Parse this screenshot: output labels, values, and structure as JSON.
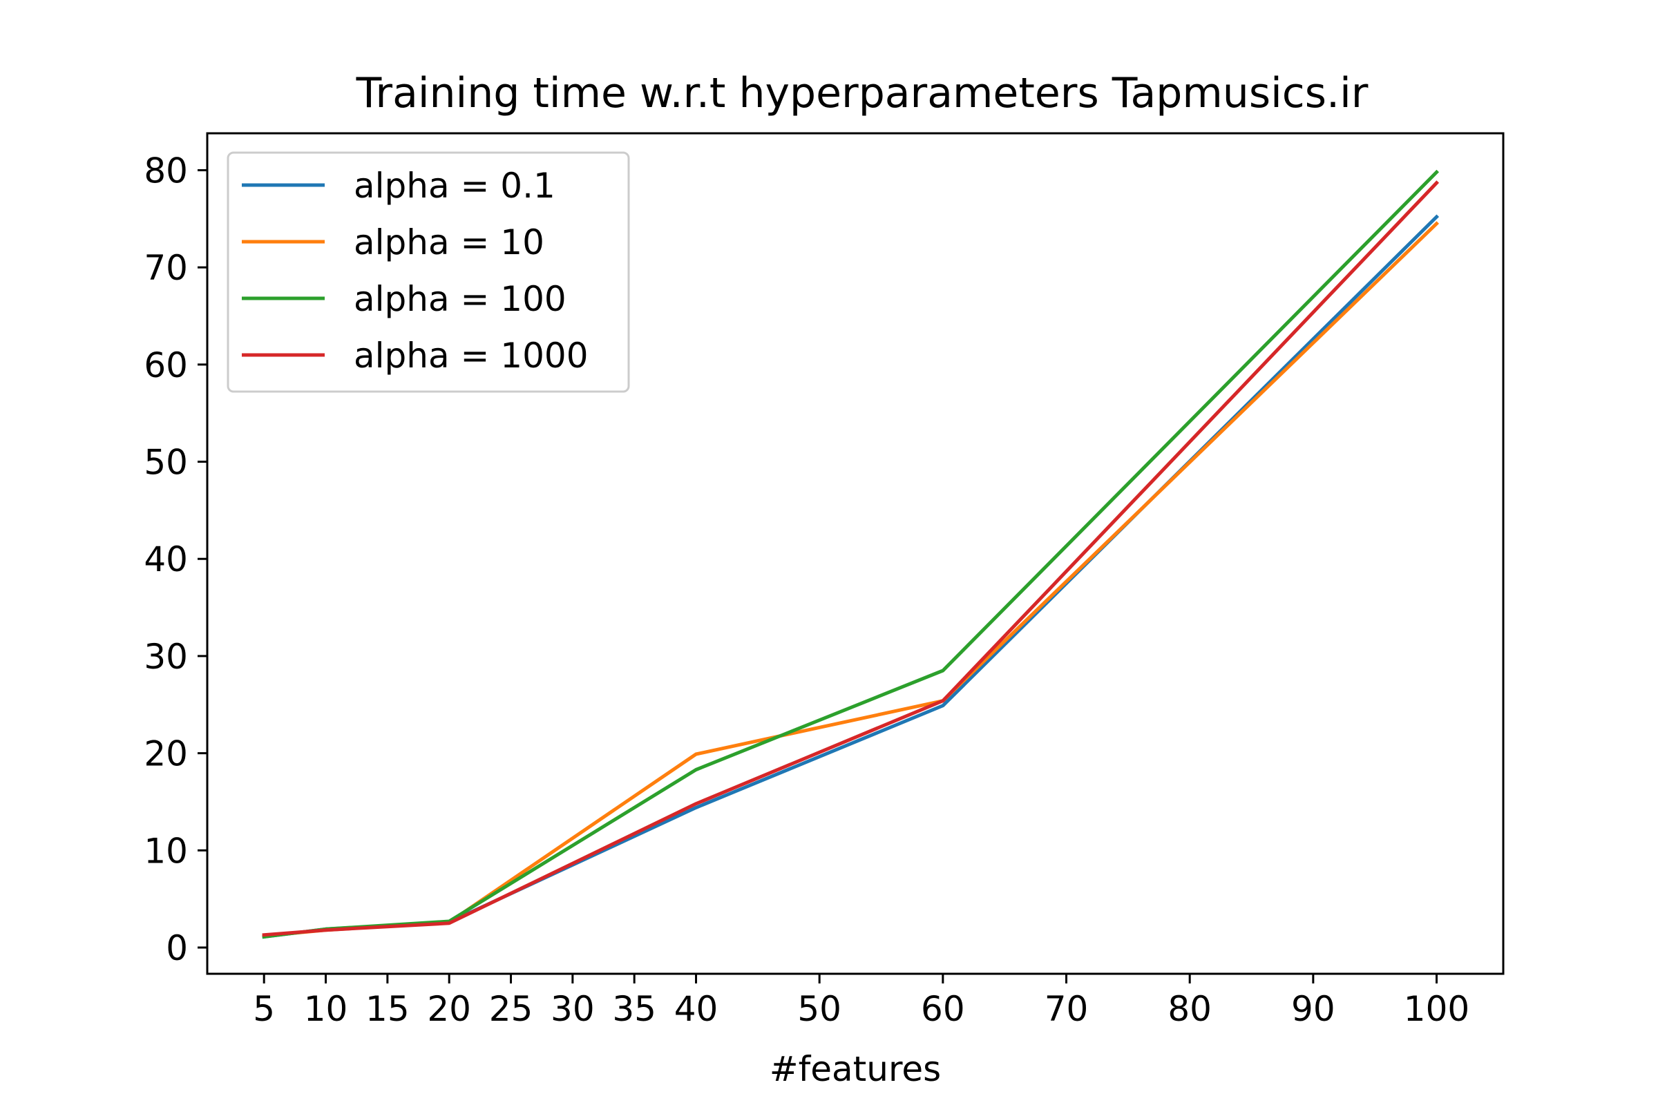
{
  "chart_data": {
    "type": "line",
    "title": "Training time w.r.t hyperparameters Tapmusics.ir",
    "xlabel": "#features",
    "ylabel": "",
    "x": [
      5,
      10,
      20,
      40,
      60,
      100
    ],
    "xticks": [
      5,
      10,
      15,
      20,
      25,
      30,
      35,
      40,
      50,
      60,
      70,
      80,
      90,
      100
    ],
    "yticks": [
      0,
      10,
      20,
      30,
      40,
      50,
      60,
      70,
      80
    ],
    "xlim": [
      0.4,
      105.4
    ],
    "ylim": [
      -2.7,
      83.8
    ],
    "grid": false,
    "legend_position": "top-left",
    "series": [
      {
        "name": "alpha = 0.1",
        "color": "#1f77b4",
        "values": [
          1.1,
          1.9,
          2.6,
          14.4,
          24.9,
          75.2
        ]
      },
      {
        "name": "alpha = 10",
        "color": "#ff7f0e",
        "values": [
          1.2,
          1.8,
          2.6,
          19.9,
          25.4,
          74.5
        ]
      },
      {
        "name": "alpha = 100",
        "color": "#2ca02c",
        "values": [
          1.1,
          1.9,
          2.7,
          18.3,
          28.5,
          79.8
        ]
      },
      {
        "name": "alpha = 1000",
        "color": "#d62728",
        "values": [
          1.3,
          1.8,
          2.5,
          14.8,
          25.4,
          78.7
        ]
      }
    ]
  }
}
